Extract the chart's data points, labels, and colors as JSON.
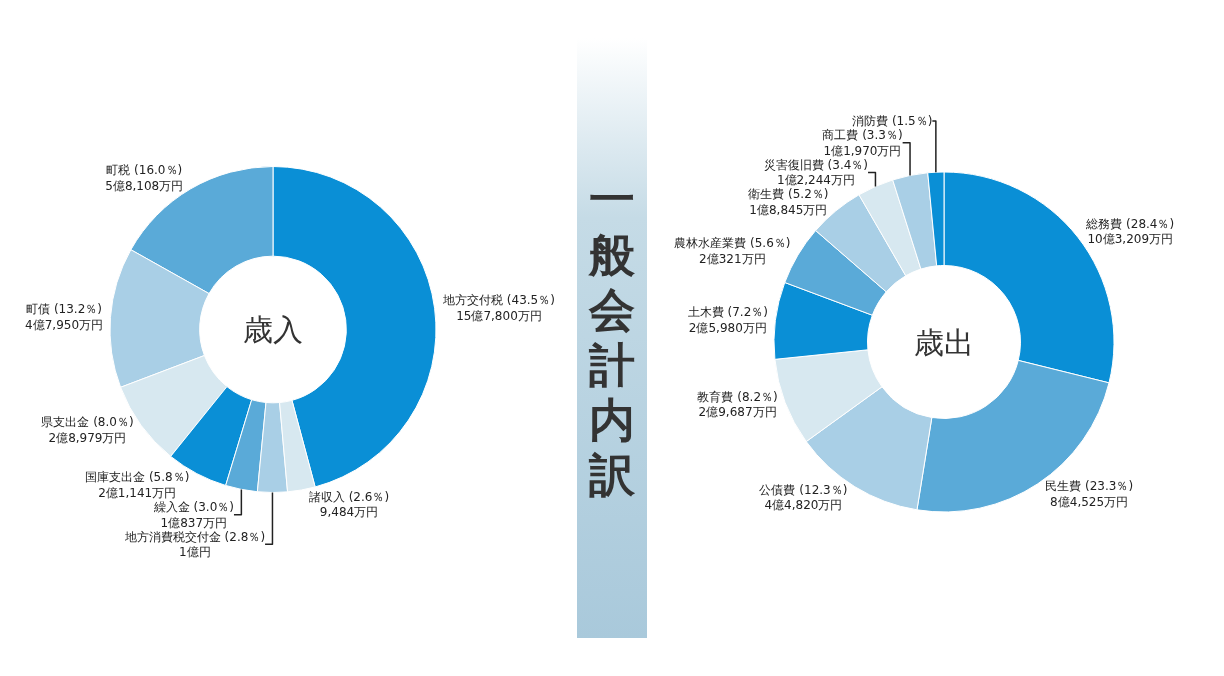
{
  "chart_data": [
    {
      "type": "donut",
      "title": "歳入",
      "annotations": [
        "一般会計内訳"
      ],
      "categories": [
        "地方交付税",
        "町税",
        "町債",
        "県支出金",
        "国庫支出金",
        "繰入金",
        "地方消費税交付金",
        "諸収入"
      ],
      "values": [
        43.5,
        16.0,
        13.2,
        8.0,
        5.8,
        3.0,
        2.8,
        2.6
      ],
      "value_labels": [
        "(43.5％)\n15億7,800万円",
        "(16.0％)\n5億8,108万円",
        "(13.2％)\n4億7,950万円",
        "(8.0％)\n2億8,979万円",
        "(5.8％)\n2億1,141万円",
        "(3.0％)\n1億837万円",
        "(2.8％)\n1億円",
        "(2.6％)\n9,484万円"
      ],
      "colors": [
        "#0a8fd6",
        "#5aaad8",
        "#a9cfe6",
        "#d7e8f0",
        "#0a8fd6",
        "#5aaad8",
        "#a9cfe6",
        "#d7e8f0"
      ]
    },
    {
      "type": "donut",
      "title": "歳出",
      "categories": [
        "総務費",
        "民生費",
        "公債費",
        "教育費",
        "土木費",
        "農林水産業費",
        "衛生費",
        "災害復旧費",
        "商工費",
        "消防費"
      ],
      "values": [
        28.4,
        23.3,
        12.3,
        8.2,
        7.2,
        5.6,
        5.2,
        3.4,
        3.3,
        1.5
      ],
      "value_labels": [
        "(28.4％)\n10億3,209万円",
        "(23.3％)\n8億4,525万円",
        "(12.3％)\n4億4,820万円",
        "(8.2％)\n2億9,687万円",
        "(7.2％)\n2億5,980万円",
        "(5.6％)\n2億321万円",
        "(5.2％)\n1億8,845万円",
        "(3.4％)\n1億2,244万円",
        "(3.3％)\n1億1,970万円",
        "(1.5％)"
      ],
      "colors": [
        "#0a8fd6",
        "#5aaad8",
        "#a9cfe6",
        "#d7e8f0",
        "#0a8fd6",
        "#5aaad8",
        "#a9cfe6",
        "#d7e8f0",
        "#a9cfe6",
        "#0a8fd6"
      ]
    }
  ]
}
